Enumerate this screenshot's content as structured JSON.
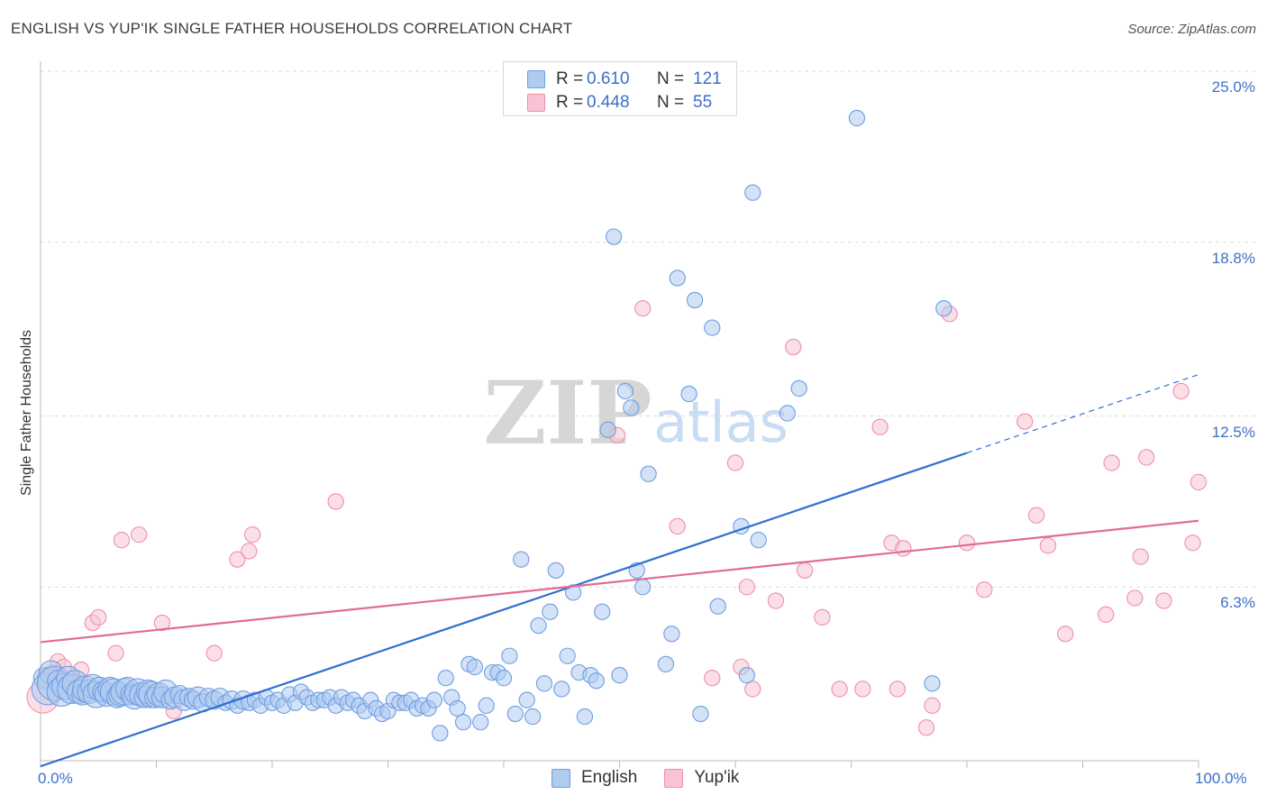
{
  "header": {
    "title": "ENGLISH VS YUP'IK SINGLE FATHER HOUSEHOLDS CORRELATION CHART",
    "source": "Source: ZipAtlas.com"
  },
  "legend": {
    "r_label": "R =",
    "n_label": "N =",
    "series": [
      {
        "r": "0.610",
        "n": "121"
      },
      {
        "r": "0.448",
        "n": "55"
      }
    ]
  },
  "colors": {
    "english_fill": "#aecbf0",
    "english_stroke": "#6f9ee0",
    "english_line": "#2f6fcf",
    "yupik_fill": "#f8c4d4",
    "yupik_stroke": "#ee8fab",
    "yupik_line": "#e06c95",
    "grid": "#dcdcdc",
    "tick_text": "#3d6fc8"
  },
  "chart_data": {
    "type": "scatter",
    "title": "ENGLISH VS YUP'IK SINGLE FATHER HOUSEHOLDS CORRELATION CHART",
    "xlabel": "",
    "ylabel": "Single Father Households",
    "xlim": [
      0,
      100
    ],
    "ylim": [
      0,
      25
    ],
    "x_tick_labels": [
      "0.0%",
      "100.0%"
    ],
    "y_ticks": [
      6.3,
      12.5,
      18.8,
      25.0
    ],
    "y_tick_labels": [
      "6.3%",
      "12.5%",
      "18.8%",
      "25.0%"
    ],
    "grid": true,
    "watermark": "ZIPatlas",
    "legend_position": "bottom",
    "series": [
      {
        "name": "English",
        "R": 0.61,
        "N": 121,
        "trend": {
          "x0": 0,
          "y0": -0.2,
          "x1": 100,
          "y1": 14.0,
          "solid_until_x": 80
        },
        "points": [
          [
            0.3,
            3.0,
            14
          ],
          [
            0.6,
            2.6,
            22
          ],
          [
            0.9,
            3.2,
            16
          ],
          [
            1.2,
            2.8,
            24
          ],
          [
            1.5,
            2.9,
            14
          ],
          [
            1.8,
            2.5,
            20
          ],
          [
            2.1,
            2.7,
            18
          ],
          [
            2.4,
            3.0,
            16
          ],
          [
            2.7,
            2.6,
            20
          ],
          [
            3.0,
            2.8,
            18
          ],
          [
            3.3,
            2.5,
            16
          ],
          [
            3.6,
            2.4,
            14
          ],
          [
            3.9,
            2.6,
            18
          ],
          [
            4.2,
            2.5,
            16
          ],
          [
            4.5,
            2.7,
            16
          ],
          [
            4.8,
            2.4,
            18
          ],
          [
            5.1,
            2.6,
            16
          ],
          [
            5.4,
            2.5,
            14
          ],
          [
            5.7,
            2.4,
            16
          ],
          [
            6.0,
            2.6,
            16
          ],
          [
            6.3,
            2.5,
            18
          ],
          [
            6.6,
            2.3,
            14
          ],
          [
            6.9,
            2.4,
            16
          ],
          [
            7.2,
            2.5,
            18
          ],
          [
            7.5,
            2.6,
            16
          ],
          [
            7.8,
            2.4,
            14
          ],
          [
            8.1,
            2.3,
            16
          ],
          [
            8.4,
            2.5,
            18
          ],
          [
            8.7,
            2.4,
            16
          ],
          [
            9.0,
            2.3,
            14
          ],
          [
            9.3,
            2.5,
            16
          ],
          [
            9.6,
            2.4,
            18
          ],
          [
            9.9,
            2.3,
            14
          ],
          [
            10.2,
            2.4,
            16
          ],
          [
            10.5,
            2.3,
            14
          ],
          [
            10.8,
            2.5,
            16
          ],
          [
            11.2,
            2.2,
            12
          ],
          [
            11.6,
            2.3,
            14
          ],
          [
            12.0,
            2.4,
            12
          ],
          [
            12.4,
            2.2,
            14
          ],
          [
            12.8,
            2.3,
            12
          ],
          [
            13.2,
            2.2,
            12
          ],
          [
            13.6,
            2.3,
            14
          ],
          [
            14.0,
            2.1,
            12
          ],
          [
            14.5,
            2.3,
            12
          ],
          [
            15.0,
            2.2,
            12
          ],
          [
            15.5,
            2.3,
            12
          ],
          [
            16.0,
            2.1,
            10
          ],
          [
            16.5,
            2.2,
            12
          ],
          [
            17.0,
            2.0,
            10
          ],
          [
            17.5,
            2.2,
            12
          ],
          [
            18.0,
            2.1,
            10
          ],
          [
            18.5,
            2.2,
            10
          ],
          [
            19.0,
            2.0,
            10
          ],
          [
            19.5,
            2.3,
            10
          ],
          [
            20.0,
            2.1,
            10
          ],
          [
            20.5,
            2.2,
            10
          ],
          [
            21.0,
            2.0,
            10
          ],
          [
            21.5,
            2.4,
            10
          ],
          [
            22.0,
            2.1,
            10
          ],
          [
            22.5,
            2.5,
            10
          ],
          [
            23.0,
            2.3,
            10
          ],
          [
            23.5,
            2.1,
            10
          ],
          [
            24.0,
            2.2,
            10
          ],
          [
            24.5,
            2.2,
            10
          ],
          [
            25.0,
            2.3,
            10
          ],
          [
            25.5,
            2.0,
            10
          ],
          [
            26.0,
            2.3,
            10
          ],
          [
            26.5,
            2.1,
            10
          ],
          [
            27.0,
            2.2,
            10
          ],
          [
            27.5,
            2.0,
            10
          ],
          [
            28.0,
            1.8,
            10
          ],
          [
            28.5,
            2.2,
            10
          ],
          [
            29.0,
            1.9,
            10
          ],
          [
            29.5,
            1.7,
            10
          ],
          [
            30.0,
            1.8,
            10
          ],
          [
            30.5,
            2.2,
            10
          ],
          [
            31.0,
            2.1,
            10
          ],
          [
            31.5,
            2.1,
            10
          ],
          [
            32.0,
            2.2,
            10
          ],
          [
            32.5,
            1.9,
            10
          ],
          [
            33.0,
            2.0,
            10
          ],
          [
            33.5,
            1.9,
            10
          ],
          [
            34.0,
            2.2,
            10
          ],
          [
            34.5,
            1.0,
            10
          ],
          [
            35.0,
            3.0,
            10
          ],
          [
            35.5,
            2.3,
            10
          ],
          [
            36.0,
            1.9,
            10
          ],
          [
            36.5,
            1.4,
            10
          ],
          [
            37.0,
            3.5,
            10
          ],
          [
            37.5,
            3.4,
            10
          ],
          [
            38.0,
            1.4,
            10
          ],
          [
            38.5,
            2.0,
            10
          ],
          [
            39.0,
            3.2,
            10
          ],
          [
            39.5,
            3.2,
            10
          ],
          [
            40.0,
            3.0,
            10
          ],
          [
            40.5,
            3.8,
            10
          ],
          [
            41.0,
            1.7,
            10
          ],
          [
            41.5,
            7.3,
            10
          ],
          [
            42.0,
            2.2,
            10
          ],
          [
            42.5,
            1.6,
            10
          ],
          [
            43.0,
            4.9,
            10
          ],
          [
            43.5,
            2.8,
            10
          ],
          [
            44.0,
            5.4,
            10
          ],
          [
            44.5,
            6.9,
            10
          ],
          [
            45.0,
            2.6,
            10
          ],
          [
            45.5,
            3.8,
            10
          ],
          [
            46.0,
            6.1,
            10
          ],
          [
            46.5,
            3.2,
            10
          ],
          [
            47.0,
            1.6,
            10
          ],
          [
            47.5,
            3.1,
            10
          ],
          [
            48.0,
            2.9,
            10
          ],
          [
            48.5,
            5.4,
            10
          ],
          [
            49.0,
            12.0,
            10
          ],
          [
            49.5,
            19.0,
            10
          ],
          [
            50.0,
            3.1,
            10
          ],
          [
            50.5,
            13.4,
            10
          ],
          [
            51.0,
            12.8,
            10
          ],
          [
            51.5,
            6.9,
            10
          ],
          [
            52.0,
            6.3,
            10
          ],
          [
            52.5,
            10.4,
            10
          ],
          [
            54.0,
            3.5,
            10
          ],
          [
            54.5,
            4.6,
            10
          ],
          [
            55.0,
            17.5,
            10
          ],
          [
            56.0,
            13.3,
            10
          ],
          [
            56.5,
            16.7,
            10
          ],
          [
            57.0,
            1.7,
            10
          ],
          [
            58.0,
            15.7,
            10
          ],
          [
            58.5,
            5.6,
            10
          ],
          [
            60.5,
            8.5,
            10
          ],
          [
            61.0,
            3.1,
            10
          ],
          [
            61.5,
            20.6,
            10
          ],
          [
            62.0,
            8.0,
            10
          ],
          [
            64.5,
            12.6,
            10
          ],
          [
            65.5,
            13.5,
            10
          ],
          [
            70.5,
            23.3,
            10
          ],
          [
            77.0,
            2.8,
            10
          ],
          [
            78.0,
            16.4,
            10
          ]
        ]
      },
      {
        "name": "Yup'ik",
        "R": 0.448,
        "N": 55,
        "trend": {
          "x0": 0,
          "y0": 4.3,
          "x1": 100,
          "y1": 8.7
        },
        "points": [
          [
            0.2,
            2.3,
            22
          ],
          [
            0.6,
            3.0,
            14
          ],
          [
            1.0,
            3.2,
            10
          ],
          [
            1.5,
            3.6,
            10
          ],
          [
            2.0,
            3.4,
            10
          ],
          [
            2.5,
            2.8,
            10
          ],
          [
            3.0,
            2.9,
            10
          ],
          [
            3.5,
            3.3,
            10
          ],
          [
            4.0,
            2.5,
            10
          ],
          [
            4.5,
            5.0,
            10
          ],
          [
            5.0,
            5.2,
            10
          ],
          [
            6.5,
            3.9,
            10
          ],
          [
            7.0,
            8.0,
            10
          ],
          [
            8.5,
            8.2,
            10
          ],
          [
            10.5,
            5.0,
            10
          ],
          [
            11.5,
            1.8,
            10
          ],
          [
            15.0,
            3.9,
            10
          ],
          [
            17.0,
            7.3,
            10
          ],
          [
            18.0,
            7.6,
            10
          ],
          [
            18.3,
            8.2,
            10
          ],
          [
            25.5,
            9.4,
            10
          ],
          [
            49.8,
            11.8,
            10
          ],
          [
            52.0,
            16.4,
            10
          ],
          [
            55.0,
            8.5,
            10
          ],
          [
            58.0,
            3.0,
            10
          ],
          [
            60.0,
            10.8,
            10
          ],
          [
            60.5,
            3.4,
            10
          ],
          [
            61.0,
            6.3,
            10
          ],
          [
            61.5,
            2.6,
            10
          ],
          [
            63.5,
            5.8,
            10
          ],
          [
            65.0,
            15.0,
            10
          ],
          [
            66.0,
            6.9,
            10
          ],
          [
            67.5,
            5.2,
            10
          ],
          [
            69.0,
            2.6,
            10
          ],
          [
            71.0,
            2.6,
            10
          ],
          [
            72.5,
            12.1,
            10
          ],
          [
            73.5,
            7.9,
            10
          ],
          [
            74.0,
            2.6,
            10
          ],
          [
            74.5,
            7.7,
            10
          ],
          [
            76.5,
            1.2,
            10
          ],
          [
            77.0,
            2.0,
            10
          ],
          [
            78.5,
            16.2,
            10
          ],
          [
            80.0,
            7.9,
            10
          ],
          [
            81.5,
            6.2,
            10
          ],
          [
            85.0,
            12.3,
            10
          ],
          [
            86.0,
            8.9,
            10
          ],
          [
            87.0,
            7.8,
            10
          ],
          [
            88.5,
            4.6,
            10
          ],
          [
            92.0,
            5.3,
            10
          ],
          [
            92.5,
            10.8,
            10
          ],
          [
            94.5,
            5.9,
            10
          ],
          [
            95.0,
            7.4,
            10
          ],
          [
            95.5,
            11.0,
            10
          ],
          [
            97.0,
            5.8,
            10
          ],
          [
            98.5,
            13.4,
            10
          ],
          [
            99.5,
            7.9,
            10
          ],
          [
            100.0,
            10.1,
            10
          ]
        ]
      }
    ]
  }
}
